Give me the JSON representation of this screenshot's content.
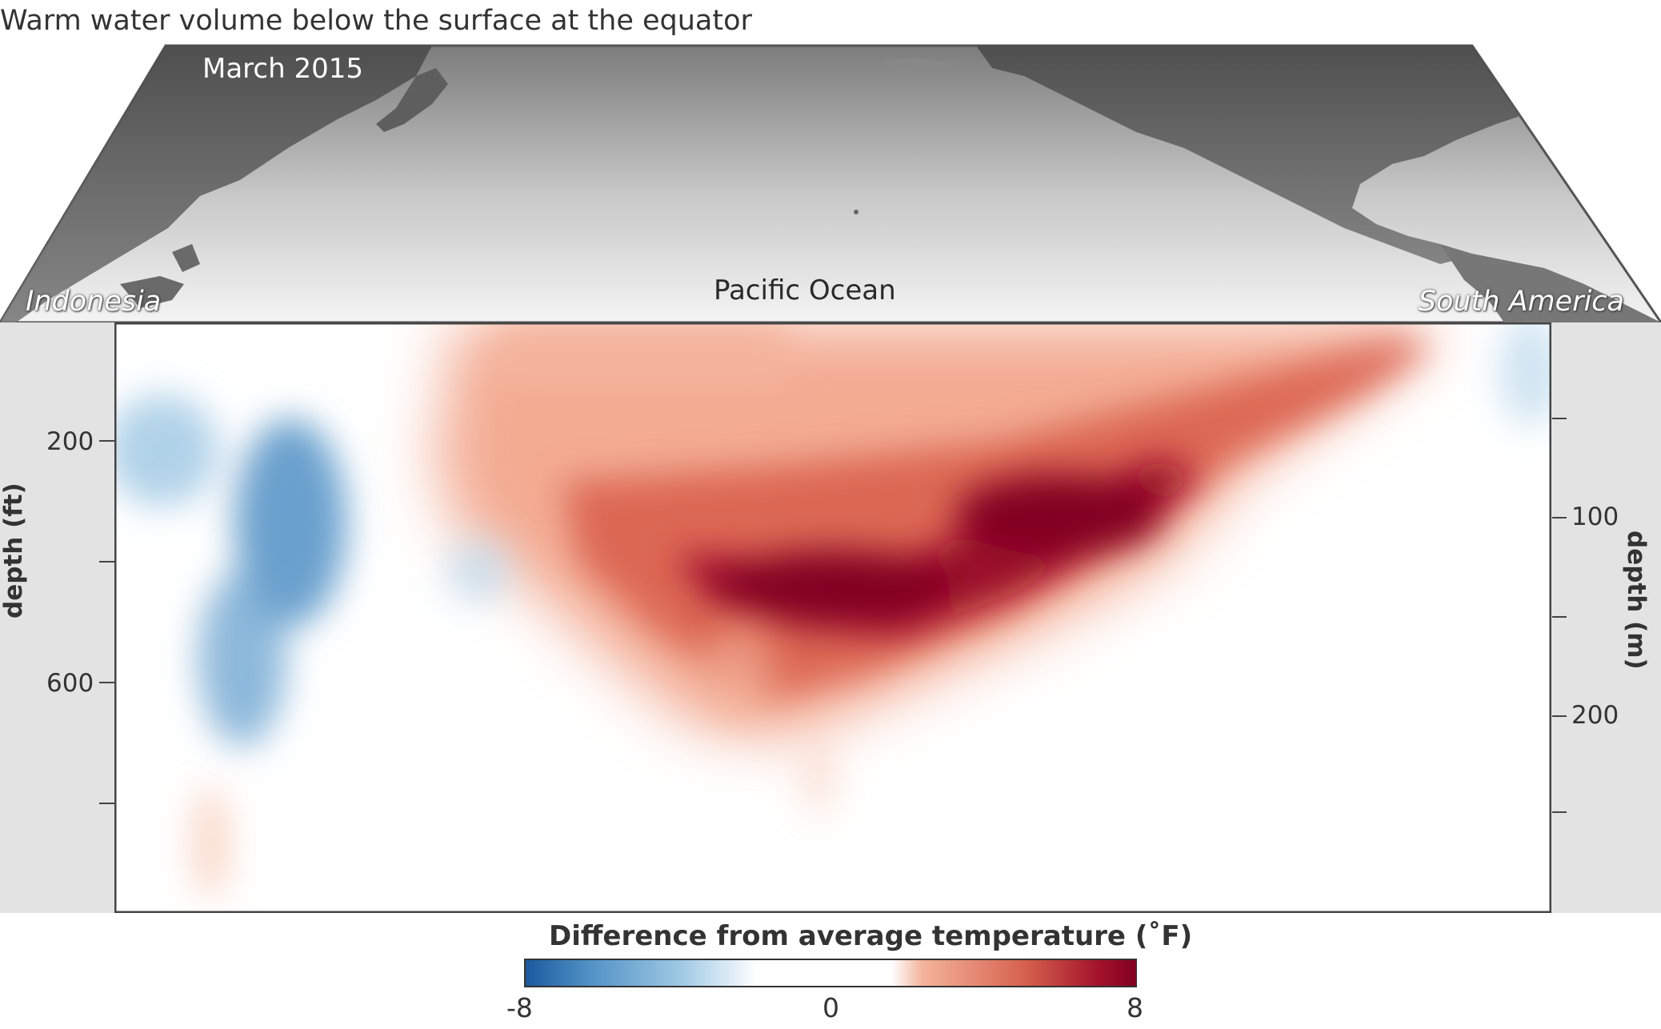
{
  "title": "Warm water volume below the surface at the equator",
  "map": {
    "month": "March 2015",
    "ocean_label": "Pacific Ocean",
    "region_left": "Indonesia",
    "region_right": "South America"
  },
  "axes": {
    "left_title": "depth (ft)",
    "right_title": "depth (m)",
    "left_ticks": [
      "200",
      "",
      "600",
      ""
    ],
    "right_ticks": [
      "",
      "100",
      "",
      "200",
      ""
    ]
  },
  "colorbar": {
    "title": "Difference from average temperature (˚F)",
    "min_label": "-8",
    "mid_label": "0",
    "max_label": "8",
    "colors": [
      "#1a5a9e",
      "#4f8fc4",
      "#9cc7e3",
      "#ffffff",
      "#ffffff",
      "#f4b49b",
      "#d6604d",
      "#a3122b",
      "#820021"
    ]
  },
  "chart_data": {
    "type": "heatmap",
    "title": "Warm water volume below the surface at the equator",
    "xlabel": "",
    "ylabel": "depth (ft)",
    "y2label": "depth (m)",
    "x_extent_labels": [
      "Indonesia",
      "South America"
    ],
    "yticks_ft": [
      200,
      400,
      600,
      800
    ],
    "ytick_labels_ft": [
      "200",
      "",
      "600",
      ""
    ],
    "yticks_m": [
      50,
      100,
      150,
      200,
      250
    ],
    "ytick_labels_m": [
      "",
      "100",
      "",
      "200",
      ""
    ],
    "colorbar_range_F": [
      -8,
      8
    ],
    "anomaly_blobs_F": [
      {
        "lon": 0.66,
        "depth_m": 125,
        "value": 8
      },
      {
        "lon": 0.5,
        "depth_m": 145,
        "value": 8
      },
      {
        "lon": 0.4,
        "depth_m": 145,
        "value": 6
      },
      {
        "lon": 0.79,
        "depth_m": 90,
        "value": 6
      },
      {
        "lon": 0.9,
        "depth_m": 40,
        "value": 4
      },
      {
        "lon": 0.3,
        "depth_m": 60,
        "value": 3
      },
      {
        "lon": 0.45,
        "depth_m": 20,
        "value": 2
      },
      {
        "lon": 0.14,
        "depth_m": 110,
        "value": -5
      },
      {
        "lon": 0.1,
        "depth_m": 170,
        "value": -4
      },
      {
        "lon": 0.04,
        "depth_m": 65,
        "value": -2
      },
      {
        "lon": 0.97,
        "depth_m": 25,
        "value": -1
      },
      {
        "lon": 0.08,
        "depth_m": 260,
        "value": 1
      }
    ]
  }
}
